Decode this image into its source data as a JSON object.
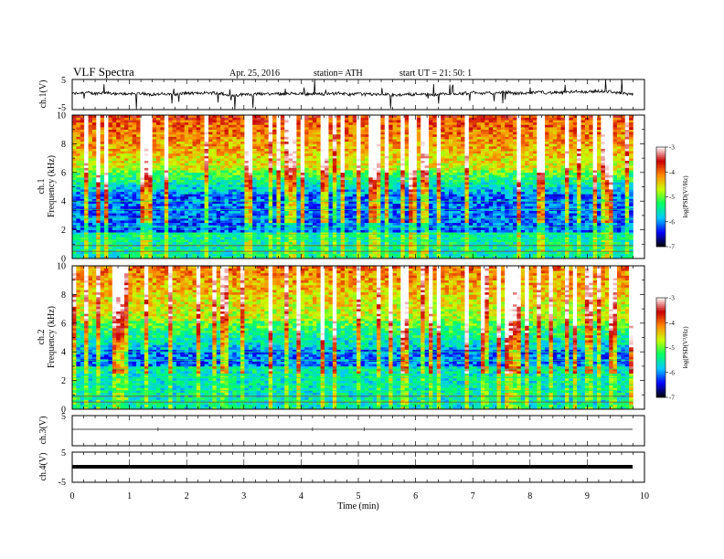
{
  "header": {
    "title": "VLF  Spectra",
    "date": "Apr. 25, 2016",
    "station": "station= ATH",
    "start": "start  UT  =   21: 50: 1"
  },
  "chart_data": [
    {
      "type": "line",
      "name": "ch1-waveform",
      "ylabel": "ch.1(V)",
      "ylim": [
        -5,
        5
      ],
      "yticks": [
        "5",
        "-5"
      ],
      "xlim": [
        0,
        10
      ],
      "data_end_min": 9.8
    },
    {
      "type": "heatmap",
      "name": "ch1-spectrogram",
      "ylabel_channel": "ch.1",
      "ylabel": "Frequency  (kHz)",
      "ylim": [
        0,
        10
      ],
      "yticks": [
        "0",
        "2",
        "4",
        "6",
        "8",
        "10"
      ],
      "xlim": [
        0,
        10
      ],
      "colorbar": {
        "label": "log(PSD(V²/Hz)",
        "range": [
          -7,
          -3
        ],
        "ticks": [
          "-3",
          "-4",
          "-5",
          "-6",
          "-7"
        ]
      }
    },
    {
      "type": "heatmap",
      "name": "ch2-spectrogram",
      "ylabel_channel": "ch.2",
      "ylabel": "Frequency  (kHz)",
      "ylim": [
        0,
        10
      ],
      "yticks": [
        "0",
        "2",
        "4",
        "6",
        "8",
        "10"
      ],
      "xlim": [
        0,
        10
      ],
      "colorbar": {
        "label": "log(PSD(V²/Hz)",
        "range": [
          -7,
          -3
        ],
        "ticks": [
          "-3",
          "-4",
          "-5",
          "-6",
          "-7"
        ]
      }
    },
    {
      "type": "line",
      "name": "ch3-waveform",
      "ylabel": "ch.3(V)",
      "ylim": [
        -5,
        5
      ],
      "yticks": [
        "5"
      ],
      "xlim": [
        0,
        10
      ],
      "baseline": 0
    },
    {
      "type": "line",
      "name": "ch4-waveform",
      "ylabel": "ch.4(V)",
      "ylim": [
        -5,
        5
      ],
      "yticks": [
        "5",
        "-5"
      ],
      "xlim": [
        0,
        10
      ],
      "baseline": 0
    }
  ],
  "x_axis": {
    "label": "Time  (min)",
    "ticks": [
      "0",
      "1",
      "2",
      "3",
      "4",
      "5",
      "6",
      "7",
      "8",
      "9",
      "10"
    ]
  },
  "colors": {
    "colormap": [
      "#000000",
      "#0000ff",
      "#00c8ff",
      "#00ff64",
      "#c8ff00",
      "#ff8c00",
      "#c80000",
      "#ffffff"
    ]
  }
}
